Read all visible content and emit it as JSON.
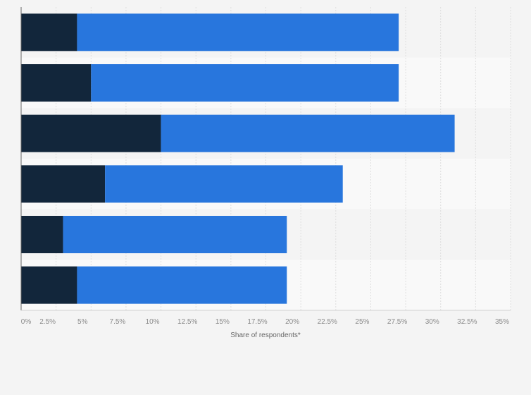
{
  "chart_data": {
    "type": "bar",
    "orientation": "horizontal",
    "stacked": true,
    "title": "",
    "xlabel": "Share of respondents*",
    "ylabel": "",
    "xlim": [
      0,
      35
    ],
    "x_ticks": [
      0,
      2.5,
      5,
      7.5,
      10,
      12.5,
      15,
      17.5,
      20,
      22.5,
      25,
      27.5,
      30,
      32.5,
      35
    ],
    "x_tick_labels": [
      "0%",
      "2.5%",
      "5%",
      "7.5%",
      "10%",
      "12.5%",
      "15%",
      "17.5%",
      "20%",
      "22.5%",
      "25%",
      "27.5%",
      "30%",
      "32.5%",
      "35%"
    ],
    "category_count": 6,
    "series": [
      {
        "values": [
          4,
          5,
          10,
          6,
          3,
          4
        ],
        "color": "#12263b"
      },
      {
        "values": [
          23,
          22,
          21,
          17,
          16,
          15
        ],
        "color": "#2876dd"
      }
    ],
    "grid": true,
    "legend": "none",
    "colors": {
      "background": "#f4f4f4",
      "row_band_light": "#f9f9f9",
      "row_band_dark": "#f4f4f4",
      "gridline": "#dedede",
      "axis": "#666666"
    }
  }
}
